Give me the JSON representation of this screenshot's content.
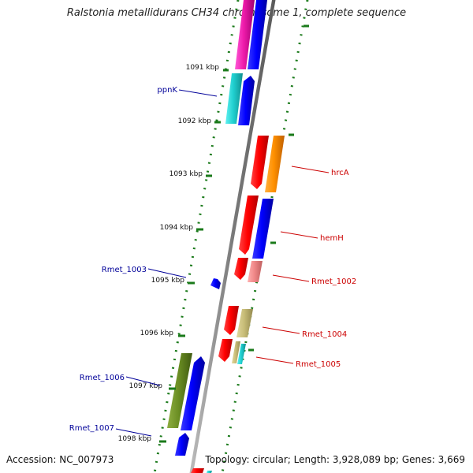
{
  "title": "Ralstonia metallidurans CH34 chromosome 1, complete sequence",
  "footer": {
    "accession": "Accession: NC_007973",
    "summary": "Topology: circular; Length: 3,928,089 bp; Genes: 3,669"
  },
  "ticks": [
    "1091 kbp",
    "1092 kbp",
    "1093 kbp",
    "1094 kbp",
    "1095 kbp",
    "1096 kbp",
    "1097 kbp",
    "1098 kbp"
  ],
  "colors": {
    "forward_label": "#cc0000",
    "reverse_label": "#000099",
    "backbone": "#888888",
    "scale_dots": "#1a7a1a"
  },
  "gene_labels": {
    "forward": [
      "hrcA",
      "hemH",
      "Rmet_1002",
      "Rmet_1004",
      "Rmet_1005"
    ],
    "reverse": [
      "ppnK",
      "Rmet_1003",
      "Rmet_1006",
      "Rmet_1007"
    ]
  }
}
